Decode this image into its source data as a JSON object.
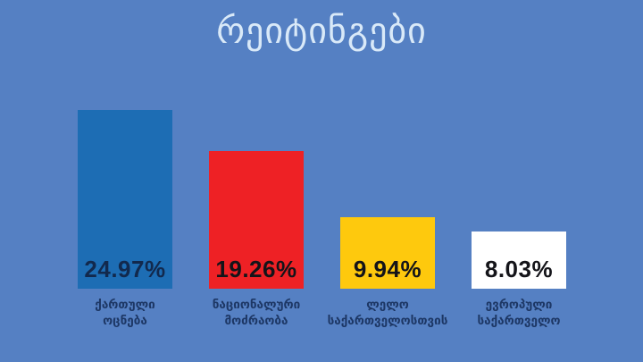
{
  "title": "რეიტინგები",
  "colors": {
    "background": "#5580c3",
    "title_text": "#d9e9f8",
    "category_label_text": "#1d3765"
  },
  "chart_data": {
    "type": "bar",
    "title": "რეიტინგები",
    "categories": [
      "ქართული ოცნება",
      "ნაციონალური მოძრაობა",
      "ლელო საქართველოსთვის",
      "ევროპული საქართველო"
    ],
    "values": [
      24.97,
      19.26,
      9.94,
      8.03
    ],
    "xlabel": "",
    "ylabel": "",
    "ylim": [
      0,
      25
    ],
    "grid": false,
    "legend": "none",
    "value_label_position": "inside-bottom",
    "bars": [
      {
        "party": "ქართული ოცნება",
        "label_lines": [
          "ქართული",
          "ოცნება"
        ],
        "value": 24.97,
        "value_label": "24.97%",
        "color": "#1d6db4",
        "value_color": "#12294d"
      },
      {
        "party": "ნაციონალური მოძრაობა",
        "label_lines": [
          "ნაციონალური",
          "მოძრაობა"
        ],
        "value": 19.26,
        "value_label": "19.26%",
        "color": "#ee2125",
        "value_color": "#141419"
      },
      {
        "party": "ლელო საქართველოსთვის",
        "label_lines": [
          "ლელო",
          "საქართველოსთვის"
        ],
        "value": 9.94,
        "value_label": "9.94%",
        "color": "#fec90d",
        "value_color": "#141419"
      },
      {
        "party": "ევროპული საქართველო",
        "label_lines": [
          "ევროპული",
          "საქართველო"
        ],
        "value": 8.03,
        "value_label": "8.03%",
        "color": "#ffffff",
        "value_color": "#141419"
      }
    ]
  }
}
